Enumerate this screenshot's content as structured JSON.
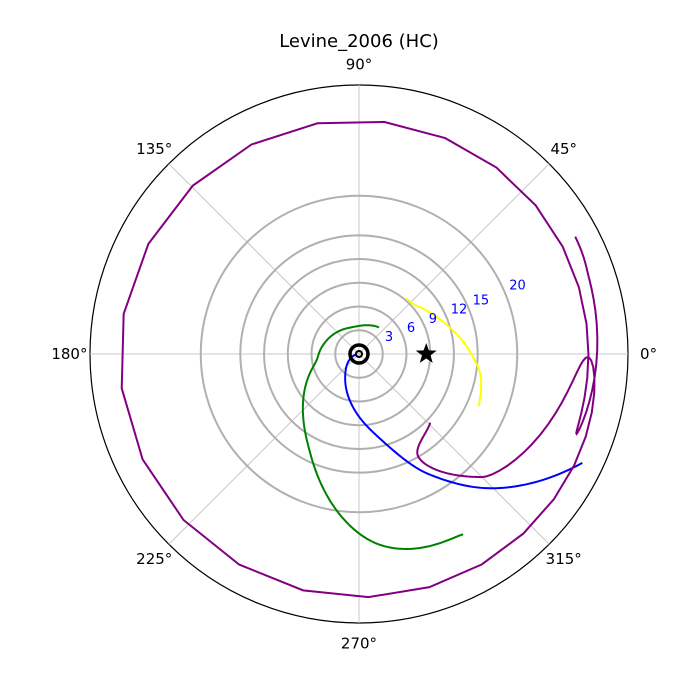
{
  "chart_data": {
    "type": "polar",
    "title": "Levine_2006 (HC)",
    "angle_tick_labels": [
      "0°",
      "45°",
      "90°",
      "135°",
      "180°",
      "225°",
      "270°",
      "315°"
    ],
    "angle_tick_degrees": [
      0,
      45,
      90,
      135,
      180,
      225,
      270,
      315
    ],
    "radial_rings": [
      3,
      6,
      9,
      12,
      15,
      20
    ],
    "radial_ring_labels": [
      "3",
      "6",
      "9",
      "12",
      "15",
      "20"
    ],
    "radial_ring_label_angle_deg": 22.5,
    "rmax": 34,
    "grid": true,
    "colors": {
      "ring": "#b0b0b0",
      "spoke": "#c8c8c8",
      "ring_label": "#0000ff",
      "frame": "#000000",
      "star": "#000000"
    },
    "center_marker": "target",
    "star_marker": {
      "theta_deg": 0,
      "r": 8.5
    },
    "series": [
      {
        "color": "#ffff00",
        "points": [
          [
            -23.5,
            16.5
          ],
          [
            -10,
            15.6
          ],
          [
            0,
            14.2
          ],
          [
            20,
            11.5
          ],
          [
            40,
            9.5
          ],
          [
            50,
            9.2
          ]
        ]
      },
      {
        "color": "#008000",
        "points": [
          [
            53,
            4.2
          ],
          [
            105,
            3.5
          ],
          [
            170,
            4.8
          ],
          [
            200,
            6.5
          ],
          [
            240,
            13
          ],
          [
            275,
            24
          ],
          [
            300,
            26.3
          ]
        ]
      },
      {
        "color": "#0000ff",
        "points": [
          [
            190,
            0.3
          ],
          [
            240,
            3.5
          ],
          [
            280,
            10
          ],
          [
            300,
            17.5
          ],
          [
            315,
            24
          ],
          [
            334,
            31.4
          ]
        ]
      },
      {
        "color": "#800080",
        "points": [
          [
            316,
            12.5
          ],
          [
            300,
            15
          ],
          [
            315,
            22
          ],
          [
            340,
            30.5
          ],
          [
            0,
            29
          ],
          [
            20,
            30.7
          ],
          [
            28.5,
            31.1
          ]
        ]
      }
    ]
  }
}
